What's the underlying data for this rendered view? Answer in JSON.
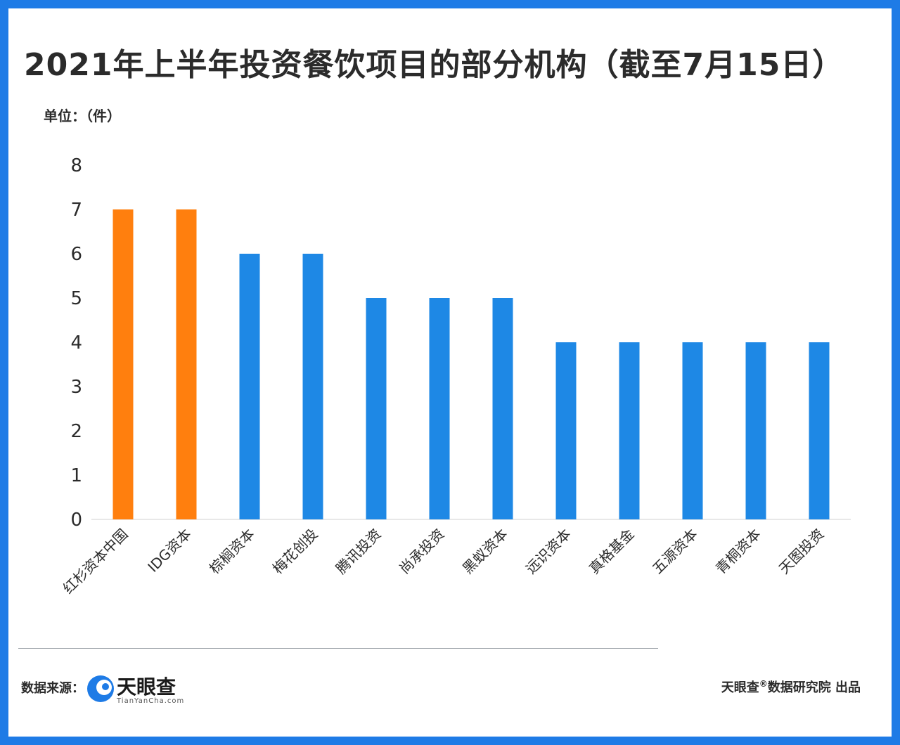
{
  "title": "2021年上半年投资餐饮项目的部分机构（截至7月15日）",
  "unit_label": "单位：（件）",
  "colors": {
    "frame": "#1e7be6",
    "highlight_bar": "#ff7f0e",
    "normal_bar": "#1e88e5"
  },
  "chart_data": {
    "type": "bar",
    "title": "2021年上半年投资餐饮项目的部分机构（截至7月15日）",
    "ylabel": "单位：（件）",
    "ylim": [
      0,
      8
    ],
    "yticks": [
      "0",
      "1",
      "2",
      "3",
      "4",
      "5",
      "6",
      "7",
      "8"
    ],
    "categories": [
      "红杉资本中国",
      "IDG资本",
      "棕榈资本",
      "梅花创投",
      "腾讯投资",
      "尚承投资",
      "黑蚁资本",
      "远识资本",
      "真格基金",
      "五源资本",
      "青桐资本",
      "天图投资"
    ],
    "values": [
      7,
      7,
      6,
      6,
      5,
      5,
      5,
      4,
      4,
      4,
      4,
      4
    ],
    "bar_colors": [
      "#ff7f0e",
      "#ff7f0e",
      "#1e88e5",
      "#1e88e5",
      "#1e88e5",
      "#1e88e5",
      "#1e88e5",
      "#1e88e5",
      "#1e88e5",
      "#1e88e5",
      "#1e88e5",
      "#1e88e5"
    ],
    "grid": false,
    "legend": "none"
  },
  "footer": {
    "source_label": "数据来源：",
    "logo_cn": "天眼查",
    "logo_en": "TianYanCha.com",
    "credit_main": "天眼查",
    "credit_mark": "®",
    "credit_rest": "数据研究院 出品"
  }
}
